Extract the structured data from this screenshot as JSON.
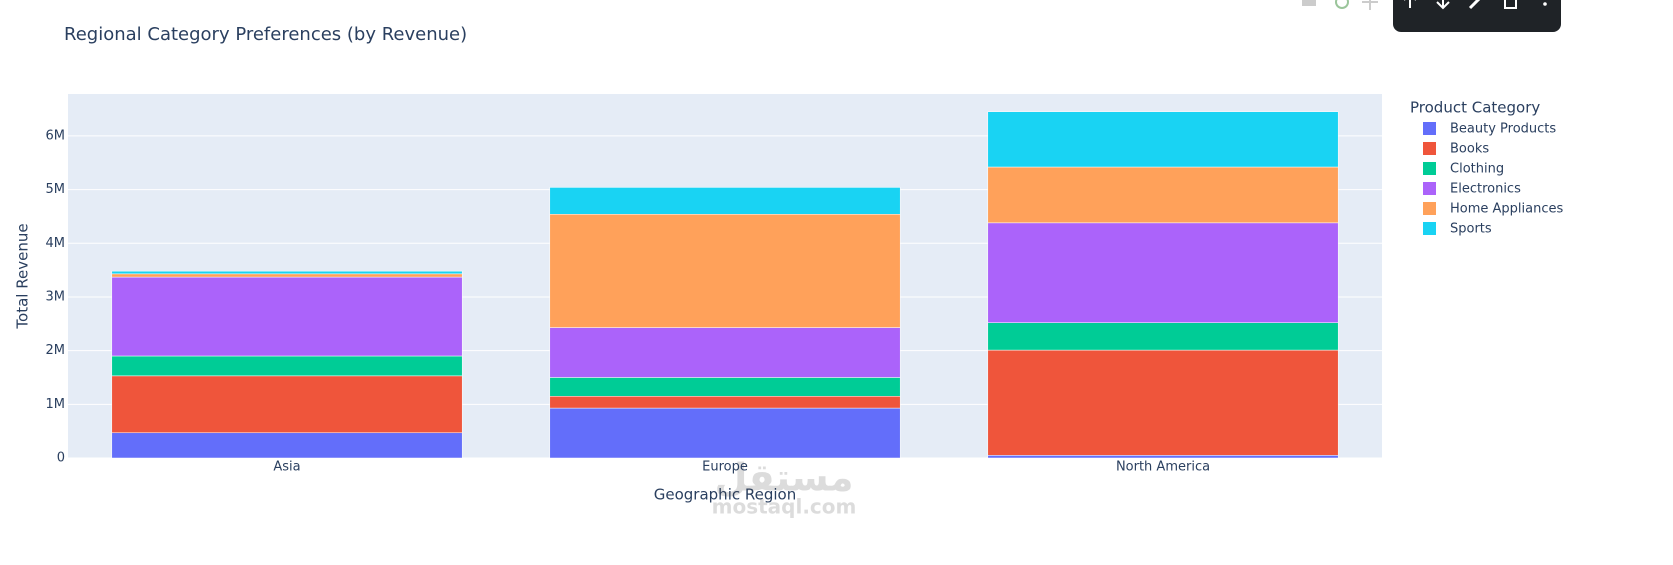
{
  "chart_data": {
    "type": "stacked_bar",
    "title": "Regional Category Preferences (by Revenue)",
    "x_label": "Geographic Region",
    "y_label": "Total Revenue",
    "categories": [
      "Asia",
      "Europe",
      "North America"
    ],
    "series": [
      {
        "name": "Beauty Products",
        "color": "#636efa",
        "values": [
          470000,
          930000,
          50000
        ]
      },
      {
        "name": "Books",
        "color": "#ef553b",
        "values": [
          1060000,
          220000,
          1960000
        ]
      },
      {
        "name": "Clothing",
        "color": "#00cc96",
        "values": [
          370000,
          350000,
          510000
        ]
      },
      {
        "name": "Electronics",
        "color": "#ab63fa",
        "values": [
          1470000,
          930000,
          1860000
        ]
      },
      {
        "name": "Home Appliances",
        "color": "#ffa15a",
        "values": [
          60000,
          2110000,
          1040000
        ]
      },
      {
        "name": "Sports",
        "color": "#19d3f3",
        "values": [
          50000,
          500000,
          1030000
        ]
      }
    ],
    "legend_title": "Product Category",
    "ylim": [
      0,
      6780000
    ],
    "yticks": [
      0,
      {
        "value": 1000000,
        "label": "1M"
      },
      {
        "value": 2000000,
        "label": "2M"
      },
      {
        "value": 3000000,
        "label": "3M"
      },
      {
        "value": 4000000,
        "label": "4M"
      },
      {
        "value": 5000000,
        "label": "5M"
      },
      {
        "value": 6000000,
        "label": "6M"
      }
    ],
    "grid": true,
    "legend_position": "right"
  },
  "watermark": {
    "arabic": "مستقل",
    "latin": "mostaql.com"
  }
}
